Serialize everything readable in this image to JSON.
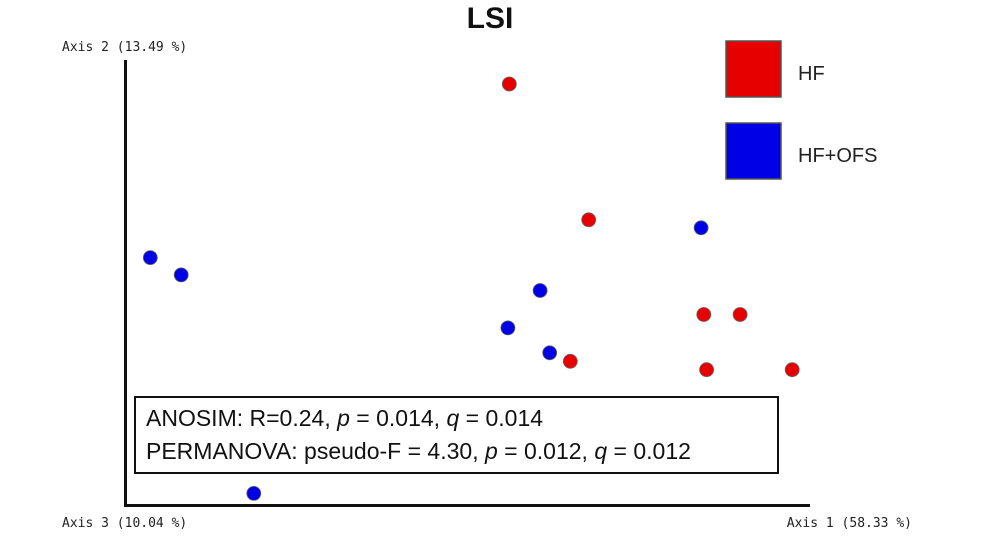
{
  "chart_data": {
    "type": "scatter",
    "title": "LSI",
    "axes": {
      "x_label": "Axis 1 (58.33 %)",
      "y_label": "Axis 2 (13.49 %)",
      "z_label": "Axis 3 (10.04 %)",
      "xlim": [
        0,
        100
      ],
      "ylim": [
        0,
        100
      ]
    },
    "legend_position": "top-right",
    "series": [
      {
        "name": "HF",
        "color": "#e60000",
        "points": [
          {
            "x": 56.1,
            "y": 94.6
          },
          {
            "x": 67.7,
            "y": 64.1
          },
          {
            "x": 84.5,
            "y": 42.8
          },
          {
            "x": 89.8,
            "y": 42.8
          },
          {
            "x": 65.0,
            "y": 32.3
          },
          {
            "x": 84.9,
            "y": 30.4
          },
          {
            "x": 97.4,
            "y": 30.4
          }
        ]
      },
      {
        "name": "HF+OFS",
        "color": "#0000e6",
        "points": [
          {
            "x": 84.1,
            "y": 62.3
          },
          {
            "x": 3.7,
            "y": 55.6
          },
          {
            "x": 8.2,
            "y": 51.7
          },
          {
            "x": 60.6,
            "y": 48.2
          },
          {
            "x": 55.9,
            "y": 39.8
          },
          {
            "x": 62.0,
            "y": 34.2
          },
          {
            "x": 18.8,
            "y": 2.6
          }
        ]
      }
    ],
    "stats": {
      "anosim": {
        "prefix": "ANOSIM: R=0.24, ",
        "p_sym": "p",
        "p_val": " = 0.014, ",
        "q_sym": "q",
        "q_val": " = 0.014"
      },
      "permanova": {
        "prefix": "PERMANOVA: pseudo-F = 4.30, ",
        "p_sym": "p",
        "p_val": " = 0.012, ",
        "q_sym": "q",
        "q_val": " = 0.012"
      }
    }
  }
}
